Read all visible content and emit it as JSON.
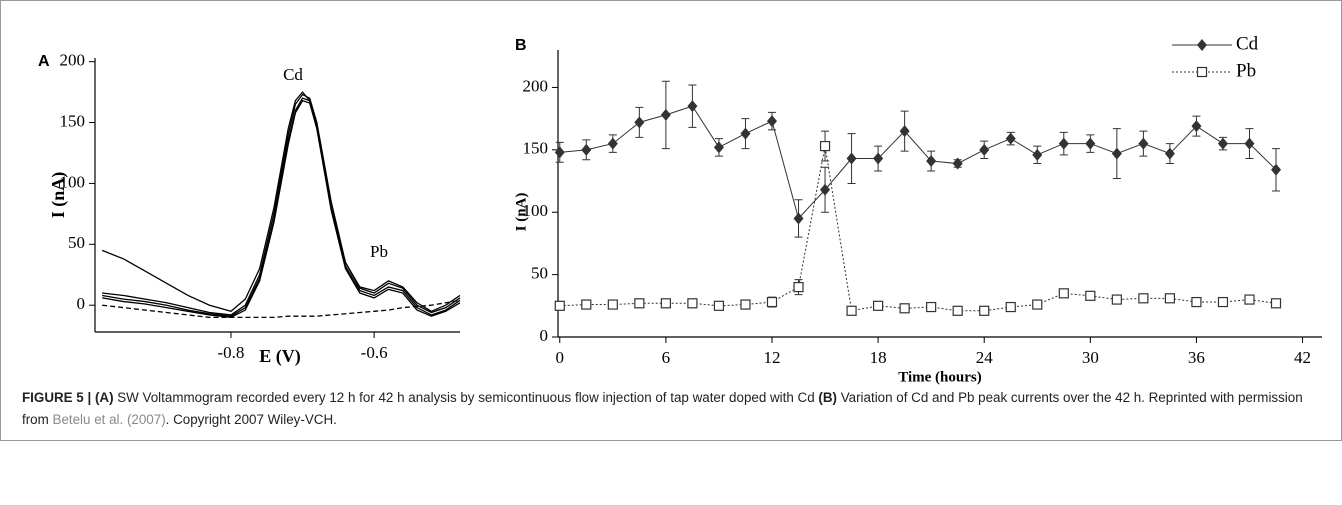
{
  "chart_data": [
    {
      "type": "line",
      "label": "A",
      "ylabel": "I (nA)",
      "xlabel": "E (V)",
      "annotations": [
        "Cd",
        "Pb"
      ],
      "xlim": [
        -0.99,
        -0.48
      ],
      "ylim": [
        -22,
        203
      ],
      "xticks": [
        -0.8,
        -0.6
      ],
      "yticks": [
        0,
        50,
        100,
        150,
        200
      ],
      "x": [
        -0.98,
        -0.95,
        -0.92,
        -0.89,
        -0.86,
        -0.83,
        -0.8,
        -0.78,
        -0.76,
        -0.74,
        -0.72,
        -0.71,
        -0.7,
        -0.69,
        -0.68,
        -0.66,
        -0.64,
        -0.62,
        -0.6,
        -0.58,
        -0.56,
        -0.54,
        -0.52,
        -0.5,
        -0.48
      ],
      "series": [
        {
          "color": "#000000",
          "line_style": "solid",
          "values": [
            45,
            38,
            28,
            18,
            8,
            0,
            -5,
            5,
            30,
            80,
            145,
            168,
            175,
            168,
            145,
            80,
            35,
            15,
            12,
            20,
            15,
            2,
            -5,
            0,
            8
          ]
        },
        {
          "color": "#000000",
          "line_style": "solid",
          "values": [
            10,
            8,
            5,
            2,
            -2,
            -6,
            -8,
            0,
            25,
            75,
            140,
            165,
            173,
            170,
            150,
            85,
            35,
            14,
            10,
            18,
            14,
            0,
            -6,
            -2,
            6
          ]
        },
        {
          "color": "#000000",
          "line_style": "solid",
          "values": [
            8,
            5,
            3,
            0,
            -4,
            -7,
            -9,
            -2,
            22,
            70,
            135,
            160,
            170,
            168,
            148,
            80,
            32,
            12,
            8,
            15,
            12,
            -2,
            -8,
            -4,
            4
          ]
        },
        {
          "color": "#000000",
          "line_style": "solid",
          "values": [
            6,
            3,
            1,
            -2,
            -5,
            -8,
            -10,
            -4,
            20,
            68,
            132,
            158,
            168,
            166,
            145,
            78,
            30,
            10,
            6,
            13,
            10,
            -4,
            -9,
            -5,
            2
          ]
        },
        {
          "color": "#000000",
          "line_style": "dashed",
          "values": [
            0,
            -2,
            -4,
            -6,
            -8,
            -10,
            -10,
            -10,
            -10,
            -10,
            -9,
            -9,
            -9,
            -9,
            -9,
            -8,
            -7,
            -6,
            -5,
            -4,
            -2,
            -1,
            0,
            2,
            4
          ]
        }
      ]
    },
    {
      "type": "line",
      "label": "B",
      "ylabel": "I (nA)",
      "xlabel": "Time (hours)",
      "legend": "upper right",
      "xlim": [
        -0.1,
        43.1
      ],
      "ylim": [
        0,
        230
      ],
      "xticks": [
        0,
        6,
        12,
        18,
        24,
        30,
        36,
        42
      ],
      "yticks": [
        0,
        50,
        100,
        150,
        200
      ],
      "x": [
        0,
        1.5,
        3,
        4.5,
        6,
        7.5,
        9,
        10.5,
        12,
        13.5,
        15,
        16.5,
        18,
        19.5,
        21,
        22.5,
        24,
        25.5,
        27,
        28.5,
        30,
        31.5,
        33,
        34.5,
        36,
        37.5,
        39,
        40.5
      ],
      "series": [
        {
          "name": "Cd",
          "color": "#333333",
          "marker": "diamond",
          "line_style": "solid",
          "values": [
            148,
            150,
            155,
            172,
            178,
            185,
            152,
            163,
            173,
            95,
            118,
            143,
            143,
            165,
            141,
            139,
            150,
            159,
            146,
            155,
            155,
            147,
            155,
            147,
            169,
            155,
            155,
            134
          ],
          "errors": [
            8,
            8,
            7,
            12,
            27,
            17,
            7,
            12,
            7,
            15,
            18,
            20,
            10,
            16,
            8,
            3,
            7,
            5,
            7,
            9,
            7,
            20,
            10,
            8,
            8,
            5,
            12,
            17
          ]
        },
        {
          "name": "Pb",
          "color": "#333333",
          "marker": "open-square",
          "line_style": "dotted",
          "values": [
            25,
            26,
            26,
            27,
            27,
            27,
            25,
            26,
            28,
            40,
            153,
            21,
            25,
            23,
            24,
            21,
            21,
            24,
            26,
            35,
            33,
            30,
            31,
            31,
            28,
            28,
            30,
            27
          ],
          "errors": [
            3,
            3,
            3,
            3,
            3,
            3,
            3,
            3,
            4,
            6,
            12,
            3,
            3,
            3,
            3,
            3,
            3,
            3,
            3,
            3,
            3,
            3,
            3,
            3,
            3,
            3,
            3,
            3
          ]
        }
      ]
    }
  ],
  "caption": [
    "FIGURE 5 | (A)",
    " SW Voltammogram recorded every 12 h for 42 h analysis by semicontinuous flow injection of tap water doped with Cd ",
    "(B)",
    " Variation of Cd and Pb peak currents over the 42 h. Reprinted with permission from ",
    "Betelu et al. (2007)",
    ". Copyright 2007 Wiley-VCH."
  ]
}
